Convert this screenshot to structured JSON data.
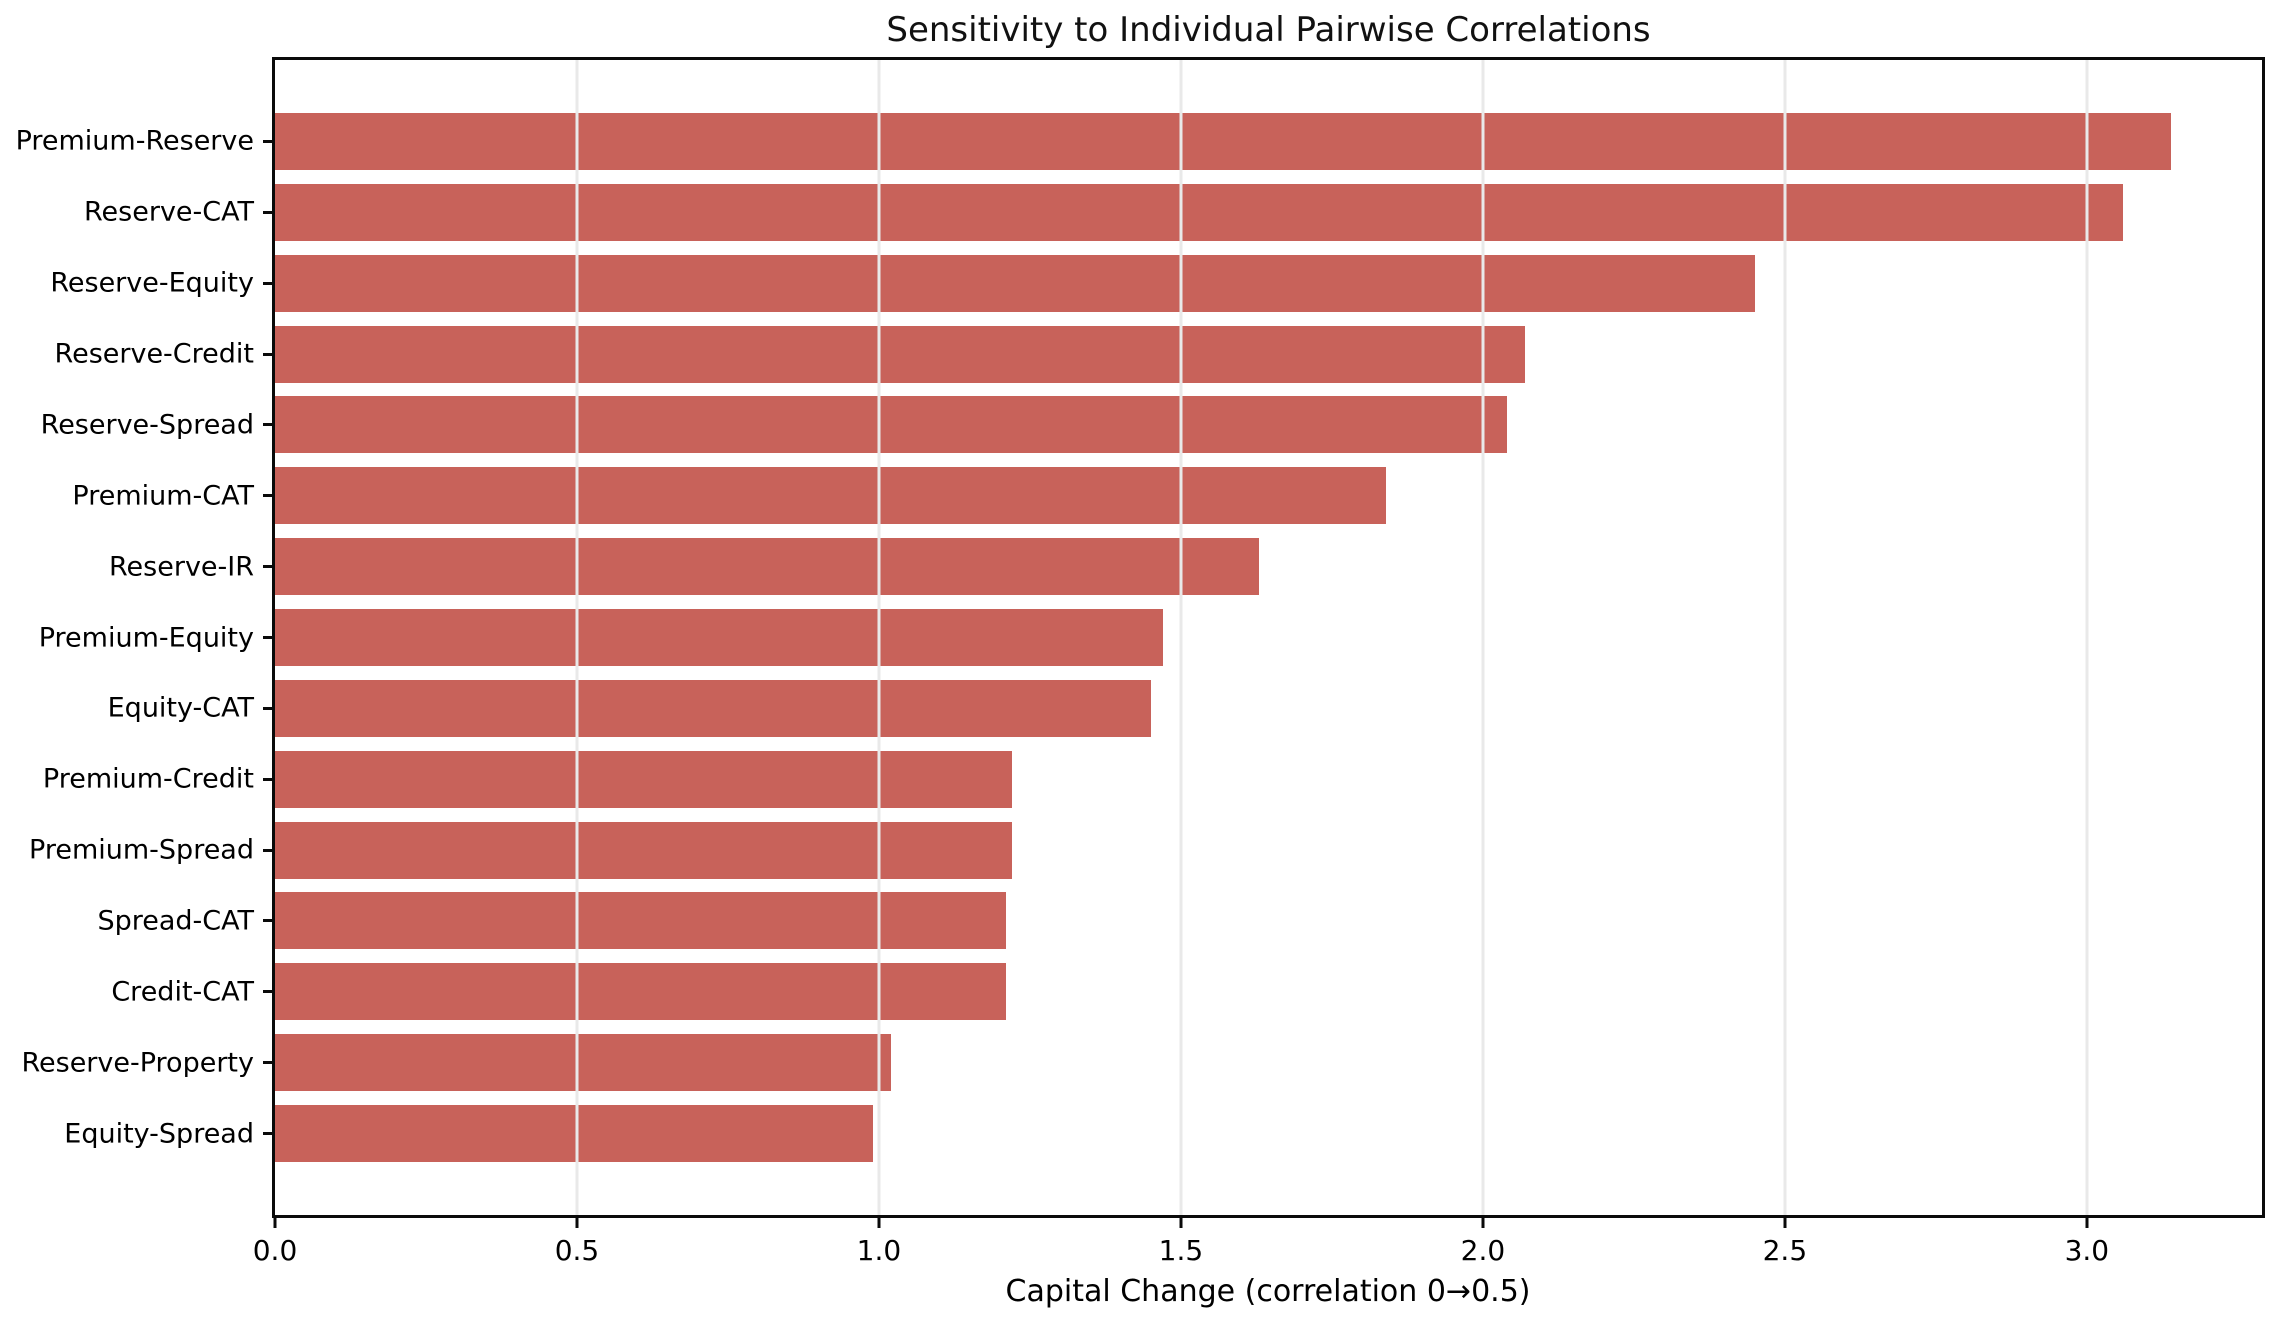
{
  "figure": {
    "title": "Sensitivity to Individual Pairwise Correlations",
    "xlabel": "Capital Change (correlation 0→0.5)"
  },
  "chart_data": {
    "type": "bar",
    "orientation": "horizontal",
    "title": "Sensitivity to Individual Pairwise Correlations",
    "xlabel": "Capital Change (correlation 0→0.5)",
    "ylabel": "",
    "categories": [
      "Premium-Reserve",
      "Reserve-CAT",
      "Reserve-Equity",
      "Reserve-Credit",
      "Reserve-Spread",
      "Premium-CAT",
      "Reserve-IR",
      "Premium-Equity",
      "Equity-CAT",
      "Premium-Credit",
      "Premium-Spread",
      "Spread-CAT",
      "Credit-CAT",
      "Reserve-Property",
      "Equity-Spread"
    ],
    "values": [
      3.14,
      3.06,
      2.45,
      2.07,
      2.04,
      1.84,
      1.63,
      1.47,
      1.45,
      1.22,
      1.22,
      1.21,
      1.21,
      1.02,
      0.99
    ],
    "xlim": [
      0,
      3.29
    ],
    "xticks": [
      0,
      0.5,
      1.0,
      1.5,
      2.0,
      2.5,
      3.0
    ],
    "xtick_labels": [
      "0.0",
      "0.5",
      "1.0",
      "1.5",
      "2.0",
      "2.5",
      "3.0"
    ],
    "bar_color": "#C8625A",
    "grid": "vertical",
    "grid_color": "#E9E9E9",
    "axes_border_color": "#0A0A0A",
    "background": "#FFFFFF",
    "legend_position": "none"
  }
}
